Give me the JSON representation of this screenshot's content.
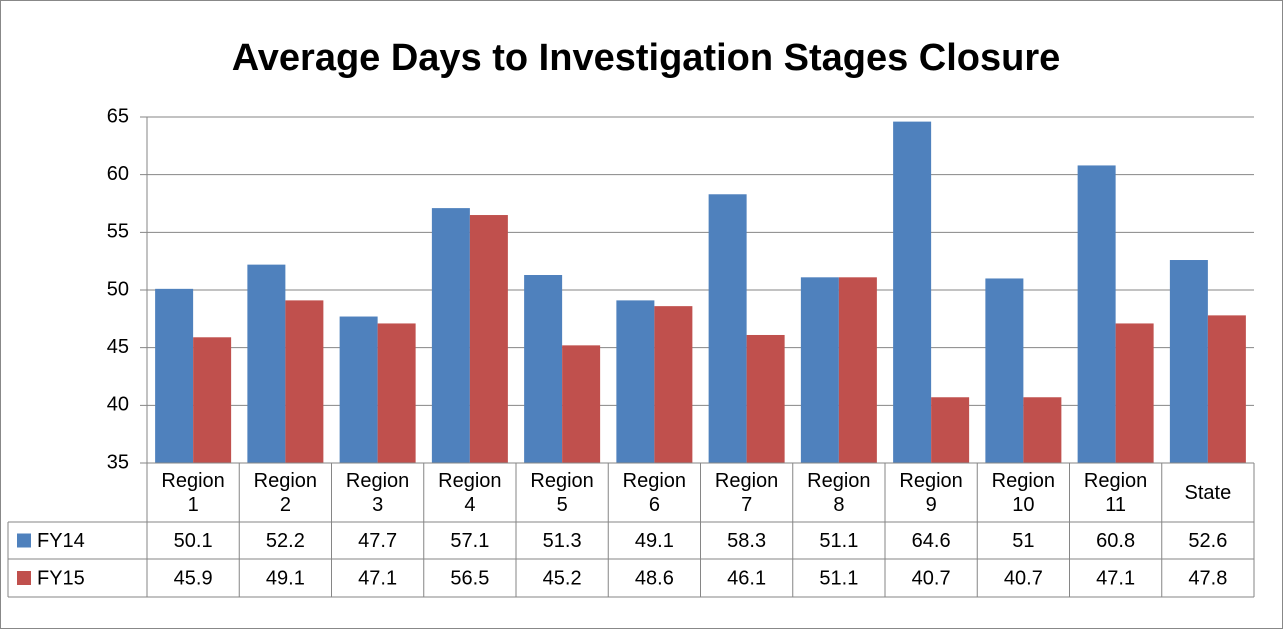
{
  "chart_data": {
    "type": "bar",
    "title": "Average Days to Investigation Stages Closure",
    "categories": [
      "Region 1",
      "Region 2",
      "Region 3",
      "Region 4",
      "Region 5",
      "Region 6",
      "Region 7",
      "Region 8",
      "Region 9",
      "Region 10",
      "Region 11",
      "State"
    ],
    "series": [
      {
        "name": "FY14",
        "color": "#4f81bd",
        "values": [
          50.1,
          52.2,
          47.7,
          57.1,
          51.3,
          49.1,
          58.3,
          51.1,
          64.6,
          51,
          60.8,
          52.6
        ]
      },
      {
        "name": "FY15",
        "color": "#c0504d",
        "values": [
          45.9,
          49.1,
          47.1,
          56.5,
          45.2,
          48.6,
          46.1,
          51.1,
          40.7,
          40.7,
          47.1,
          47.8
        ]
      }
    ],
    "ylim": [
      35,
      65
    ],
    "yticks": [
      35,
      40,
      45,
      50,
      55,
      60,
      65
    ],
    "grid": true,
    "data_table": true
  }
}
